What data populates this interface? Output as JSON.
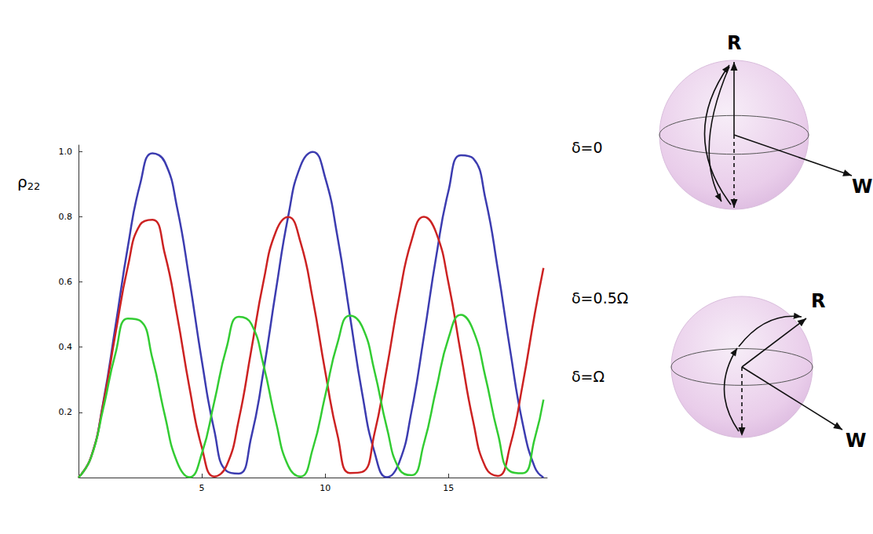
{
  "chart_data": {
    "type": "line",
    "y_label": "ρ22",
    "x": [
      0,
      0.5,
      1,
      1.5,
      2,
      2.5,
      3,
      3.5,
      4,
      4.5,
      5,
      5.5,
      6,
      6.5,
      7,
      7.5,
      8,
      8.5,
      9,
      9.5,
      10,
      10.5,
      11,
      11.5,
      12,
      12.5,
      13,
      13.5,
      14,
      14.5,
      15,
      15.5,
      16,
      16.5,
      17,
      17.5,
      18,
      18.5,
      18.85
    ],
    "series": [
      {
        "name": "δ=0",
        "color": "#3c3cb0",
        "values": [
          0,
          0.061,
          0.23,
          0.465,
          0.708,
          0.901,
          0.995,
          0.968,
          0.827,
          0.605,
          0.358,
          0.146,
          0.02,
          0.012,
          0.123,
          0.327,
          0.573,
          0.801,
          0.956,
          0.999,
          0.92,
          0.738,
          0.498,
          0.258,
          0.078,
          0.001,
          0.046,
          0.203,
          0.432,
          0.678,
          0.88,
          0.989,
          0.979,
          0.854,
          0.638,
          0.39,
          0.168,
          0.031,
          0.0
        ]
      },
      {
        "name": "δ=0.5Ω",
        "color": "#cc2222",
        "values": [
          0,
          0.061,
          0.225,
          0.442,
          0.647,
          0.776,
          0.791,
          0.686,
          0.496,
          0.275,
          0.092,
          0.003,
          0.036,
          0.178,
          0.389,
          0.602,
          0.754,
          0.799,
          0.722,
          0.546,
          0.326,
          0.13,
          0.014,
          0.017,
          0.136,
          0.336,
          0.555,
          0.727,
          0.8,
          0.751,
          0.596,
          0.38,
          0.172,
          0.032,
          0.005,
          0.098,
          0.283,
          0.504,
          0.643
        ]
      },
      {
        "name": "δ=Ω",
        "color": "#33cc33",
        "values": [
          0,
          0.06,
          0.211,
          0.381,
          0.488,
          0.481,
          0.364,
          0.191,
          0.047,
          0.001,
          0.074,
          0.231,
          0.398,
          0.493,
          0.472,
          0.345,
          0.172,
          0.036,
          0.003,
          0.089,
          0.251,
          0.413,
          0.497,
          0.463,
          0.326,
          0.153,
          0.026,
          0.007,
          0.104,
          0.271,
          0.428,
          0.499,
          0.452,
          0.307,
          0.135,
          0.019,
          0.013,
          0.121,
          0.239
        ]
      }
    ],
    "xlim": [
      0,
      19
    ],
    "xticks": [
      5,
      10,
      15
    ],
    "ylim": [
      0,
      1.02
    ],
    "yticks": [
      {
        "value": 0.2,
        "label": "0.2"
      },
      {
        "value": 0.4,
        "label": "0.4"
      },
      {
        "value": 0.6,
        "label": "0.6"
      },
      {
        "value": 0.8,
        "label": "0.8"
      },
      {
        "value": 1,
        "label": "1.0"
      }
    ],
    "grid": false,
    "annotations": [
      "R",
      "W",
      "R",
      "W"
    ]
  }
}
